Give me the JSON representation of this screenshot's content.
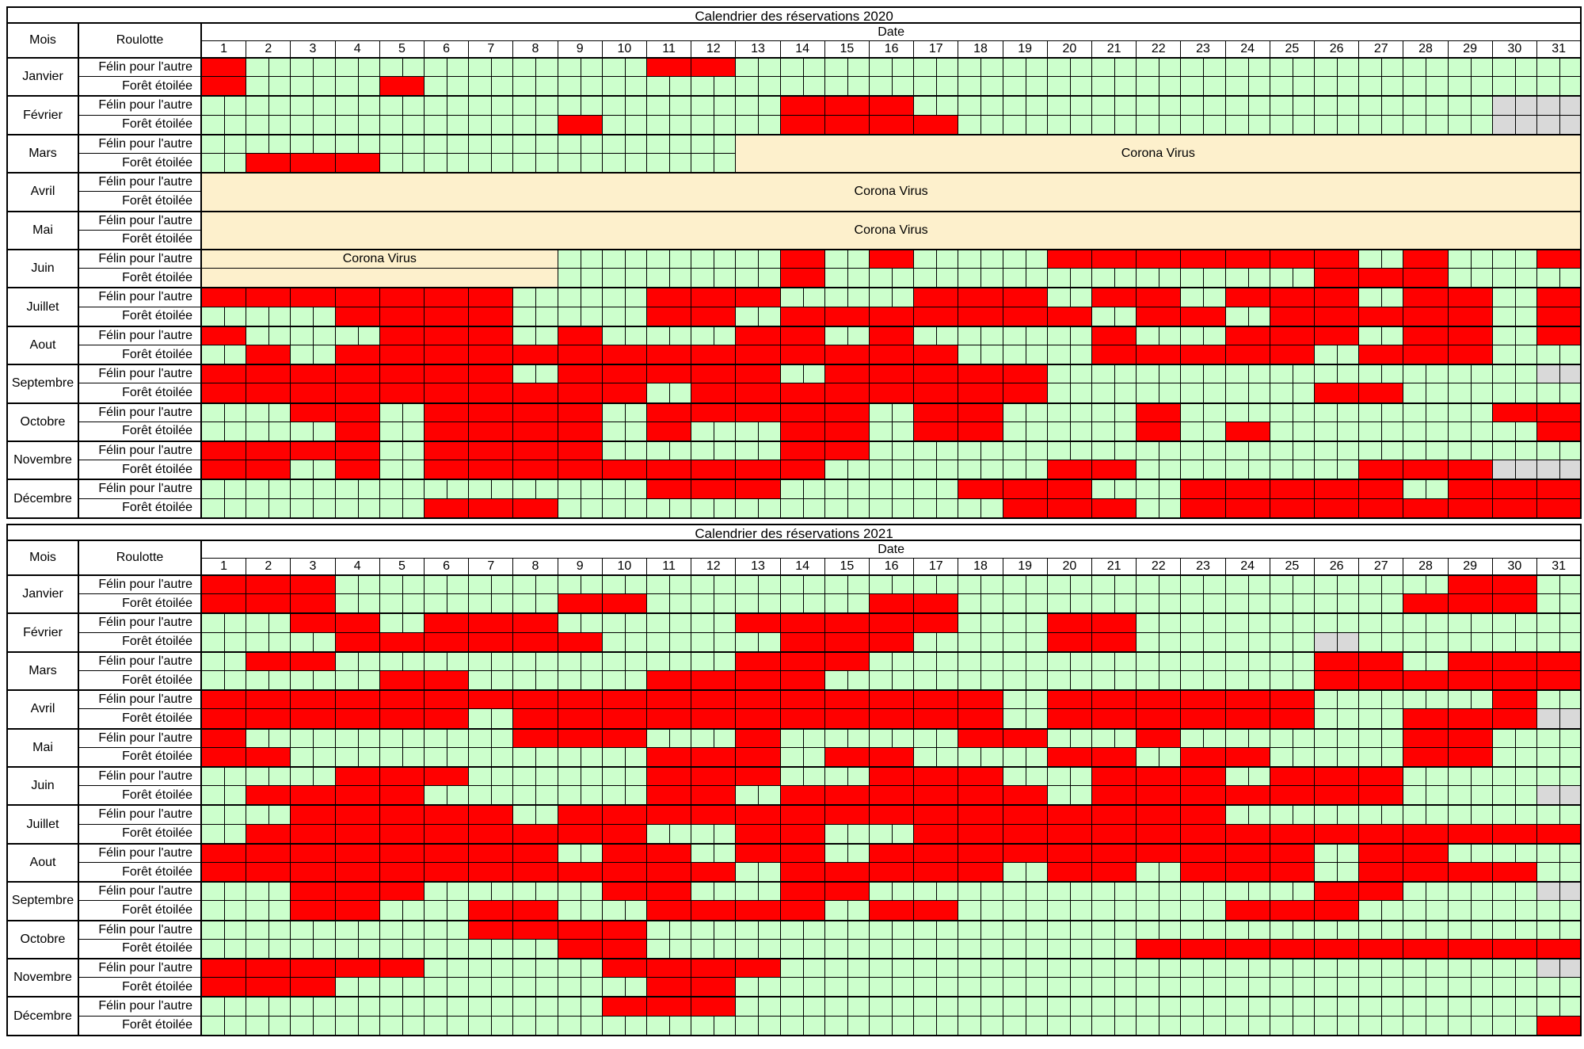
{
  "colors": {
    "free": "#ccffcc",
    "booked": "#ff0000",
    "na": "#d9d9d9",
    "corona": "#fdf0cc"
  },
  "headers": {
    "mois": "Mois",
    "roulotte": "Roulotte",
    "date": "Date"
  },
  "caravans": [
    "Félin pour l'autre",
    "Forêt étoilée"
  ],
  "months": [
    "Janvier",
    "Février",
    "Mars",
    "Avril",
    "Mai",
    "Juin",
    "Juillet",
    "Aout",
    "Septembre",
    "Octobre",
    "Novembre",
    "Décembre"
  ],
  "days": [
    "1",
    "2",
    "3",
    "4",
    "5",
    "6",
    "7",
    "8",
    "9",
    "10",
    "11",
    "12",
    "13",
    "14",
    "15",
    "16",
    "17",
    "18",
    "19",
    "20",
    "21",
    "22",
    "23",
    "24",
    "25",
    "26",
    "27",
    "28",
    "29",
    "30",
    "31"
  ],
  "calendars": [
    {
      "title": "Calendrier des réservations 2020",
      "rows": [
        {
          "booked": [
            [
              1,
              1
            ],
            [
              11,
              12
            ]
          ],
          "na": [],
          "corona": null
        },
        {
          "booked": [
            [
              1,
              1
            ],
            [
              5,
              5
            ]
          ],
          "na": [],
          "corona": null
        },
        {
          "booked": [
            [
              14,
              16
            ]
          ],
          "na": [
            30,
            31
          ],
          "corona": null
        },
        {
          "booked": [
            [
              9,
              9
            ],
            [
              14,
              17
            ]
          ],
          "na": [
            30,
            31
          ],
          "corona": null
        },
        {
          "booked": [],
          "na": [],
          "corona": null
        },
        {
          "booked": [
            [
              2,
              4
            ]
          ],
          "na": [],
          "corona": null
        },
        {
          "booked": [],
          "na": [],
          "corona": null
        },
        {
          "booked": [],
          "na": [],
          "corona": null
        },
        {
          "booked": [],
          "na": [],
          "corona": null
        },
        {
          "booked": [],
          "na": [],
          "corona": null
        },
        {
          "booked": [
            [
              14,
              14
            ],
            [
              16,
              16
            ],
            [
              20,
              26
            ],
            [
              28,
              28
            ],
            [
              31,
              31
            ]
          ],
          "na": [],
          "corona": null
        },
        {
          "booked": [
            [
              14,
              14
            ],
            [
              26,
              27
            ],
            [
              28,
              28
            ]
          ],
          "na": [],
          "corona": null
        },
        {
          "booked": [
            [
              1,
              7
            ],
            [
              11,
              13
            ],
            [
              17,
              19
            ],
            [
              21,
              22
            ],
            [
              24,
              26
            ],
            [
              28,
              29
            ],
            [
              31,
              31
            ]
          ],
          "na": [],
          "corona": null
        },
        {
          "booked": [
            [
              4,
              7
            ],
            [
              11,
              12
            ],
            [
              14,
              20
            ],
            [
              22,
              23
            ],
            [
              25,
              29
            ],
            [
              31,
              31
            ]
          ],
          "na": [],
          "corona": null
        },
        {
          "booked": [
            [
              1,
              1
            ],
            [
              5,
              7
            ],
            [
              9,
              9
            ],
            [
              13,
              14
            ],
            [
              16,
              16
            ],
            [
              21,
              21
            ],
            [
              24,
              26
            ],
            [
              28,
              29
            ],
            [
              31,
              31
            ]
          ],
          "na": [],
          "corona": null
        },
        {
          "booked": [
            [
              2,
              2
            ],
            [
              4,
              17
            ],
            [
              21,
              23
            ],
            [
              24,
              25
            ],
            [
              27,
              29
            ]
          ],
          "na": [],
          "corona": null
        },
        {
          "booked": [
            [
              1,
              7
            ],
            [
              9,
              13
            ],
            [
              15,
              19
            ]
          ],
          "na": [
            31,
            31
          ],
          "corona": null
        },
        {
          "booked": [
            [
              1,
              6
            ],
            [
              7,
              10
            ],
            [
              12,
              19
            ],
            [
              26,
              27
            ]
          ],
          "na": [],
          "corona": null
        },
        {
          "booked": [
            [
              3,
              4
            ],
            [
              6,
              9
            ],
            [
              11,
              12
            ],
            [
              13,
              15
            ],
            [
              17,
              18
            ],
            [
              22,
              22
            ],
            [
              30,
              30
            ],
            [
              31,
              31
            ]
          ],
          "na": [],
          "corona": null
        },
        {
          "booked": [
            [
              4,
              4
            ],
            [
              6,
              9
            ],
            [
              11,
              11
            ],
            [
              14,
              15
            ],
            [
              17,
              18
            ],
            [
              22,
              22
            ],
            [
              24,
              24
            ],
            [
              31,
              31
            ]
          ],
          "na": [],
          "corona": null
        },
        {
          "booked": [
            [
              1,
              1
            ],
            [
              2,
              4
            ],
            [
              6,
              8
            ],
            [
              9,
              9
            ],
            [
              14,
              15
            ]
          ],
          "na": [],
          "corona": null
        },
        {
          "booked": [
            [
              1,
              2
            ],
            [
              4,
              4
            ],
            [
              6,
              13
            ],
            [
              14,
              14
            ],
            [
              20,
              21
            ],
            [
              27,
              29
            ]
          ],
          "na": [
            30,
            31
          ],
          "corona": null
        },
        {
          "booked": [
            [
              11,
              13
            ],
            [
              18,
              20
            ],
            [
              23,
              25
            ],
            [
              26,
              27
            ],
            [
              29,
              31
            ]
          ],
          "na": [],
          "corona": null
        },
        {
          "booked": [
            [
              6,
              8
            ],
            [
              19,
              21
            ],
            [
              23,
              25
            ],
            [
              26,
              31
            ]
          ],
          "na": [],
          "corona": null
        }
      ],
      "corona_blocks": [
        {
          "label": "Corona Virus",
          "row_start": 4,
          "row_end": 5,
          "day_start": 13,
          "day_end": 31,
          "mars": true
        },
        {
          "label": "Corona Virus",
          "row_start": 6,
          "row_end": 7,
          "day_start": 1,
          "day_end": 31
        },
        {
          "label": "Corona Virus",
          "row_start": 8,
          "row_end": 9,
          "day_start": 1,
          "day_end": 31
        },
        {
          "label": "Corona Virus",
          "row_start": 10,
          "row_end": 10,
          "day_start": 1,
          "day_end": 8
        },
        {
          "label": "",
          "row_start": 11,
          "row_end": 11,
          "day_start": 1,
          "day_end": 8
        }
      ]
    },
    {
      "title": "Calendrier des réservations 2021",
      "rows": [
        {
          "booked": [
            [
              1,
              3
            ],
            [
              29,
              30
            ]
          ],
          "na": [],
          "corona": null
        },
        {
          "booked": [
            [
              1,
              3
            ],
            [
              9,
              10
            ],
            [
              16,
              17
            ],
            [
              28,
              29
            ],
            [
              29,
              30
            ]
          ],
          "na": [],
          "corona": null
        },
        {
          "booked": [
            [
              3,
              4
            ],
            [
              6,
              8
            ],
            [
              13,
              17
            ],
            [
              20,
              21
            ]
          ],
          "na": [],
          "corona": null
        },
        {
          "booked": [
            [
              4,
              9
            ],
            [
              14,
              16
            ],
            [
              20,
              21
            ]
          ],
          "na": [
            26,
            26
          ],
          "corona": null
        },
        {
          "booked": [
            [
              2,
              3
            ],
            [
              13,
              15
            ],
            [
              26,
              27
            ],
            [
              29,
              31
            ]
          ],
          "na": [],
          "corona": null
        },
        {
          "booked": [
            [
              5,
              6
            ],
            [
              11,
              14
            ],
            [
              26,
              31
            ]
          ],
          "na": [],
          "corona": null
        },
        {
          "booked": [
            [
              1,
              18
            ],
            [
              20,
              25
            ],
            [
              30,
              30
            ]
          ],
          "na": [],
          "corona": null
        },
        {
          "booked": [
            [
              1,
              1
            ],
            [
              2,
              4
            ],
            [
              5,
              5
            ],
            [
              6,
              6
            ],
            [
              8,
              9
            ],
            [
              10,
              18
            ],
            [
              20,
              25
            ],
            [
              28,
              30
            ]
          ],
          "na": [
            31,
            31
          ],
          "corona": null
        },
        {
          "booked": [
            [
              1,
              1
            ],
            [
              8,
              10
            ],
            [
              13,
              13
            ],
            [
              18,
              19
            ],
            [
              22,
              22
            ],
            [
              28,
              29
            ]
          ],
          "na": [],
          "corona": null
        },
        {
          "booked": [
            [
              1,
              2
            ],
            [
              11,
              12
            ],
            [
              13,
              13
            ],
            [
              15,
              16
            ],
            [
              20,
              21
            ],
            [
              23,
              24
            ],
            [
              28,
              29
            ]
          ],
          "na": [],
          "corona": null
        },
        {
          "booked": [
            [
              4,
              6
            ],
            [
              11,
              13
            ],
            [
              16,
              18
            ],
            [
              21,
              23
            ],
            [
              25,
              27
            ]
          ],
          "na": [],
          "corona": null
        },
        {
          "booked": [
            [
              2,
              5
            ],
            [
              11,
              12
            ],
            [
              14,
              19
            ],
            [
              21,
              24
            ],
            [
              25,
              27
            ]
          ],
          "na": [
            31,
            31
          ],
          "corona": null
        },
        {
          "booked": [
            [
              3,
              3
            ],
            [
              4,
              7
            ],
            [
              9,
              10
            ],
            [
              11,
              12
            ],
            [
              13,
              17
            ],
            [
              18,
              19
            ],
            [
              20,
              23
            ]
          ],
          "na": [],
          "corona": null
        },
        {
          "booked": [
            [
              2,
              4
            ],
            [
              5,
              7
            ],
            [
              8,
              10
            ],
            [
              13,
              14
            ],
            [
              17,
              25
            ],
            [
              26,
              29
            ],
            [
              30,
              31
            ]
          ],
          "na": [],
          "corona": null
        },
        {
          "booked": [
            [
              1,
              8
            ],
            [
              10,
              11
            ],
            [
              13,
              14
            ],
            [
              16,
              25
            ],
            [
              27,
              28
            ]
          ],
          "na": [],
          "corona": null
        },
        {
          "booked": [
            [
              1,
              3
            ],
            [
              4,
              5
            ],
            [
              6,
              12
            ],
            [
              14,
              15
            ],
            [
              16,
              18
            ],
            [
              20,
              21
            ],
            [
              23,
              25
            ],
            [
              27,
              28
            ],
            [
              29,
              30
            ]
          ],
          "na": [],
          "corona": null
        },
        {
          "booked": [
            [
              3,
              5
            ],
            [
              10,
              11
            ],
            [
              14,
              15
            ],
            [
              26,
              27
            ]
          ],
          "na": [
            31,
            31
          ],
          "corona": null
        },
        {
          "booked": [
            [
              3,
              4
            ],
            [
              7,
              8
            ],
            [
              11,
              12
            ],
            [
              13,
              14
            ],
            [
              16,
              17
            ],
            [
              24,
              26
            ]
          ],
          "na": [],
          "corona": null
        },
        {
          "booked": [
            [
              7,
              10
            ]
          ],
          "na": [],
          "corona": null
        },
        {
          "booked": [
            [
              9,
              10
            ],
            [
              22,
              23
            ],
            [
              24,
              29
            ],
            [
              30,
              31
            ]
          ],
          "na": [],
          "corona": null
        },
        {
          "booked": [
            [
              1,
              2
            ],
            [
              3,
              5
            ],
            [
              10,
              13
            ]
          ],
          "na": [
            31,
            31
          ],
          "corona": null
        },
        {
          "booked": [
            [
              1,
              1
            ],
            [
              2,
              3
            ],
            [
              11,
              12
            ]
          ],
          "na": [],
          "corona": null
        },
        {
          "booked": [
            [
              10,
              12
            ]
          ],
          "na": [],
          "corona": null
        },
        {
          "booked": [
            [
              31,
              31
            ]
          ],
          "na": [],
          "corona": null
        }
      ],
      "corona_blocks": []
    }
  ]
}
